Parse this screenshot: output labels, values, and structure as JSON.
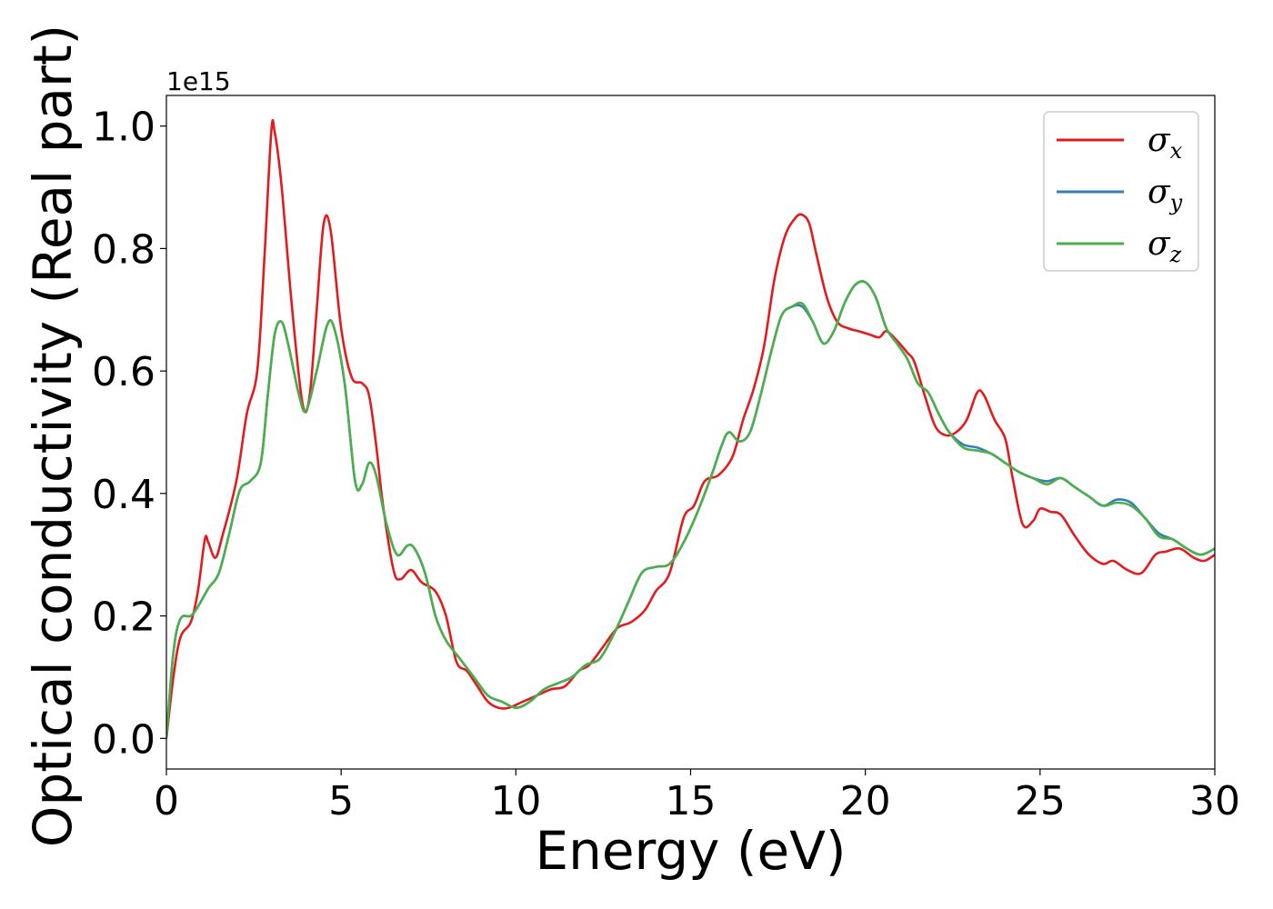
{
  "chart_data": {
    "type": "line",
    "title": "",
    "xlabel": "Energy (eV)",
    "ylabel": "Optical conductivity (Real part)",
    "y_offset_label": "1e15",
    "xlim": [
      0,
      30
    ],
    "ylim": [
      -0.05,
      1.05
    ],
    "x_ticks": [
      0,
      5,
      10,
      15,
      20,
      25,
      30
    ],
    "x_tick_labels": [
      "0",
      "5",
      "10",
      "15",
      "20",
      "25",
      "30"
    ],
    "y_ticks": [
      0.0,
      0.2,
      0.4,
      0.6,
      0.8,
      1.0
    ],
    "y_tick_labels": [
      "0.0",
      "0.2",
      "0.4",
      "0.6",
      "0.8",
      "1.0"
    ],
    "grid": false,
    "legend_position": "top-right",
    "series": [
      {
        "name": "σ",
        "subscript": "x",
        "color": "#e41a1c",
        "points": [
          [
            0,
            0
          ],
          [
            0.2,
            0.1
          ],
          [
            0.4,
            0.165
          ],
          [
            0.7,
            0.19
          ],
          [
            0.9,
            0.24
          ],
          [
            1.1,
            0.325
          ],
          [
            1.2,
            0.32
          ],
          [
            1.4,
            0.295
          ],
          [
            1.6,
            0.33
          ],
          [
            2.0,
            0.42
          ],
          [
            2.3,
            0.53
          ],
          [
            2.6,
            0.6
          ],
          [
            2.8,
            0.78
          ],
          [
            3.0,
            0.99
          ],
          [
            3.1,
            0.99
          ],
          [
            3.3,
            0.9
          ],
          [
            3.6,
            0.7
          ],
          [
            3.9,
            0.545
          ],
          [
            4.1,
            0.56
          ],
          [
            4.3,
            0.7
          ],
          [
            4.5,
            0.84
          ],
          [
            4.7,
            0.83
          ],
          [
            5.0,
            0.67
          ],
          [
            5.3,
            0.59
          ],
          [
            5.6,
            0.58
          ],
          [
            5.8,
            0.56
          ],
          [
            6.0,
            0.48
          ],
          [
            6.2,
            0.38
          ],
          [
            6.5,
            0.275
          ],
          [
            6.7,
            0.26
          ],
          [
            7.0,
            0.275
          ],
          [
            7.3,
            0.255
          ],
          [
            7.7,
            0.24
          ],
          [
            8.0,
            0.2
          ],
          [
            8.3,
            0.125
          ],
          [
            8.6,
            0.11
          ],
          [
            8.9,
            0.085
          ],
          [
            9.2,
            0.06
          ],
          [
            9.5,
            0.05
          ],
          [
            9.8,
            0.05
          ],
          [
            10.2,
            0.06
          ],
          [
            10.6,
            0.07
          ],
          [
            11.0,
            0.08
          ],
          [
            11.4,
            0.085
          ],
          [
            11.8,
            0.11
          ],
          [
            12.1,
            0.12
          ],
          [
            12.5,
            0.15
          ],
          [
            12.9,
            0.18
          ],
          [
            13.3,
            0.19
          ],
          [
            13.7,
            0.21
          ],
          [
            14.0,
            0.24
          ],
          [
            14.4,
            0.27
          ],
          [
            14.8,
            0.36
          ],
          [
            15.1,
            0.38
          ],
          [
            15.4,
            0.42
          ],
          [
            15.8,
            0.43
          ],
          [
            16.2,
            0.46
          ],
          [
            16.5,
            0.52
          ],
          [
            16.8,
            0.57
          ],
          [
            17.1,
            0.64
          ],
          [
            17.4,
            0.75
          ],
          [
            17.7,
            0.82
          ],
          [
            18.0,
            0.85
          ],
          [
            18.2,
            0.855
          ],
          [
            18.4,
            0.84
          ],
          [
            18.6,
            0.79
          ],
          [
            18.9,
            0.72
          ],
          [
            19.2,
            0.68
          ],
          [
            19.5,
            0.67
          ],
          [
            19.8,
            0.665
          ],
          [
            20.1,
            0.66
          ],
          [
            20.4,
            0.655
          ],
          [
            20.6,
            0.665
          ],
          [
            20.9,
            0.65
          ],
          [
            21.2,
            0.63
          ],
          [
            21.4,
            0.615
          ],
          [
            21.7,
            0.56
          ],
          [
            22.0,
            0.51
          ],
          [
            22.3,
            0.495
          ],
          [
            22.6,
            0.5
          ],
          [
            22.9,
            0.52
          ],
          [
            23.2,
            0.565
          ],
          [
            23.4,
            0.56
          ],
          [
            23.7,
            0.52
          ],
          [
            24.0,
            0.49
          ],
          [
            24.2,
            0.43
          ],
          [
            24.5,
            0.35
          ],
          [
            24.8,
            0.355
          ],
          [
            25.0,
            0.375
          ],
          [
            25.3,
            0.37
          ],
          [
            25.6,
            0.365
          ],
          [
            26.0,
            0.33
          ],
          [
            26.4,
            0.3
          ],
          [
            26.8,
            0.285
          ],
          [
            27.1,
            0.29
          ],
          [
            27.5,
            0.275
          ],
          [
            27.9,
            0.27
          ],
          [
            28.3,
            0.3
          ],
          [
            28.6,
            0.305
          ],
          [
            29.0,
            0.31
          ],
          [
            29.4,
            0.295
          ],
          [
            29.7,
            0.29
          ],
          [
            30.0,
            0.3
          ]
        ]
      },
      {
        "name": "σ",
        "subscript": "y",
        "color": "#377eb8",
        "points": [
          [
            0,
            0
          ],
          [
            0.2,
            0.14
          ],
          [
            0.4,
            0.195
          ],
          [
            0.7,
            0.2
          ],
          [
            0.9,
            0.215
          ],
          [
            1.2,
            0.245
          ],
          [
            1.5,
            0.27
          ],
          [
            1.8,
            0.335
          ],
          [
            2.1,
            0.405
          ],
          [
            2.4,
            0.42
          ],
          [
            2.7,
            0.45
          ],
          [
            2.9,
            0.56
          ],
          [
            3.1,
            0.66
          ],
          [
            3.3,
            0.68
          ],
          [
            3.5,
            0.64
          ],
          [
            3.8,
            0.56
          ],
          [
            4.0,
            0.535
          ],
          [
            4.3,
            0.6
          ],
          [
            4.6,
            0.675
          ],
          [
            4.8,
            0.67
          ],
          [
            5.1,
            0.58
          ],
          [
            5.4,
            0.42
          ],
          [
            5.6,
            0.415
          ],
          [
            5.8,
            0.45
          ],
          [
            6.0,
            0.43
          ],
          [
            6.3,
            0.35
          ],
          [
            6.6,
            0.3
          ],
          [
            6.9,
            0.315
          ],
          [
            7.1,
            0.31
          ],
          [
            7.4,
            0.27
          ],
          [
            7.7,
            0.2
          ],
          [
            8.0,
            0.16
          ],
          [
            8.4,
            0.13
          ],
          [
            8.8,
            0.1
          ],
          [
            9.2,
            0.07
          ],
          [
            9.6,
            0.06
          ],
          [
            10.0,
            0.05
          ],
          [
            10.4,
            0.06
          ],
          [
            10.8,
            0.08
          ],
          [
            11.2,
            0.09
          ],
          [
            11.6,
            0.1
          ],
          [
            12.0,
            0.12
          ],
          [
            12.4,
            0.13
          ],
          [
            12.8,
            0.17
          ],
          [
            13.2,
            0.22
          ],
          [
            13.6,
            0.27
          ],
          [
            14.0,
            0.28
          ],
          [
            14.4,
            0.285
          ],
          [
            14.8,
            0.32
          ],
          [
            15.2,
            0.37
          ],
          [
            15.6,
            0.43
          ],
          [
            15.9,
            0.48
          ],
          [
            16.1,
            0.5
          ],
          [
            16.4,
            0.485
          ],
          [
            16.7,
            0.5
          ],
          [
            17.0,
            0.56
          ],
          [
            17.3,
            0.63
          ],
          [
            17.6,
            0.69
          ],
          [
            17.9,
            0.705
          ],
          [
            18.2,
            0.705
          ],
          [
            18.5,
            0.68
          ],
          [
            18.8,
            0.645
          ],
          [
            19.1,
            0.665
          ],
          [
            19.4,
            0.71
          ],
          [
            19.7,
            0.74
          ],
          [
            20.0,
            0.745
          ],
          [
            20.3,
            0.72
          ],
          [
            20.6,
            0.67
          ],
          [
            20.9,
            0.645
          ],
          [
            21.2,
            0.62
          ],
          [
            21.5,
            0.58
          ],
          [
            21.8,
            0.565
          ],
          [
            22.1,
            0.53
          ],
          [
            22.4,
            0.5
          ],
          [
            22.8,
            0.48
          ],
          [
            23.2,
            0.475
          ],
          [
            23.6,
            0.465
          ],
          [
            24.0,
            0.45
          ],
          [
            24.4,
            0.435
          ],
          [
            24.8,
            0.425
          ],
          [
            25.2,
            0.42
          ],
          [
            25.6,
            0.425
          ],
          [
            26.0,
            0.41
          ],
          [
            26.4,
            0.395
          ],
          [
            26.8,
            0.38
          ],
          [
            27.2,
            0.39
          ],
          [
            27.6,
            0.385
          ],
          [
            28.0,
            0.36
          ],
          [
            28.4,
            0.335
          ],
          [
            28.8,
            0.325
          ],
          [
            29.2,
            0.31
          ],
          [
            29.6,
            0.3
          ],
          [
            30.0,
            0.31
          ]
        ]
      },
      {
        "name": "σ",
        "subscript": "z",
        "color": "#4daf4a",
        "points": [
          [
            0,
            0
          ],
          [
            0.2,
            0.14
          ],
          [
            0.4,
            0.195
          ],
          [
            0.7,
            0.2
          ],
          [
            0.9,
            0.215
          ],
          [
            1.2,
            0.245
          ],
          [
            1.5,
            0.27
          ],
          [
            1.8,
            0.335
          ],
          [
            2.1,
            0.405
          ],
          [
            2.4,
            0.42
          ],
          [
            2.7,
            0.45
          ],
          [
            2.9,
            0.56
          ],
          [
            3.1,
            0.66
          ],
          [
            3.3,
            0.68
          ],
          [
            3.5,
            0.64
          ],
          [
            3.8,
            0.56
          ],
          [
            4.0,
            0.535
          ],
          [
            4.3,
            0.6
          ],
          [
            4.6,
            0.675
          ],
          [
            4.8,
            0.67
          ],
          [
            5.1,
            0.58
          ],
          [
            5.4,
            0.42
          ],
          [
            5.6,
            0.415
          ],
          [
            5.8,
            0.45
          ],
          [
            6.0,
            0.43
          ],
          [
            6.3,
            0.35
          ],
          [
            6.6,
            0.3
          ],
          [
            6.9,
            0.315
          ],
          [
            7.1,
            0.31
          ],
          [
            7.4,
            0.27
          ],
          [
            7.7,
            0.2
          ],
          [
            8.0,
            0.16
          ],
          [
            8.4,
            0.13
          ],
          [
            8.8,
            0.1
          ],
          [
            9.2,
            0.07
          ],
          [
            9.6,
            0.06
          ],
          [
            10.0,
            0.05
          ],
          [
            10.4,
            0.06
          ],
          [
            10.8,
            0.08
          ],
          [
            11.2,
            0.09
          ],
          [
            11.6,
            0.1
          ],
          [
            12.0,
            0.12
          ],
          [
            12.4,
            0.13
          ],
          [
            12.8,
            0.17
          ],
          [
            13.2,
            0.22
          ],
          [
            13.6,
            0.27
          ],
          [
            14.0,
            0.28
          ],
          [
            14.4,
            0.285
          ],
          [
            14.8,
            0.32
          ],
          [
            15.2,
            0.37
          ],
          [
            15.6,
            0.43
          ],
          [
            15.9,
            0.48
          ],
          [
            16.1,
            0.5
          ],
          [
            16.4,
            0.485
          ],
          [
            16.7,
            0.5
          ],
          [
            17.0,
            0.56
          ],
          [
            17.3,
            0.63
          ],
          [
            17.6,
            0.69
          ],
          [
            17.9,
            0.705
          ],
          [
            18.2,
            0.71
          ],
          [
            18.5,
            0.68
          ],
          [
            18.8,
            0.645
          ],
          [
            19.1,
            0.665
          ],
          [
            19.4,
            0.71
          ],
          [
            19.7,
            0.74
          ],
          [
            20.0,
            0.745
          ],
          [
            20.3,
            0.72
          ],
          [
            20.6,
            0.67
          ],
          [
            20.9,
            0.645
          ],
          [
            21.2,
            0.62
          ],
          [
            21.5,
            0.58
          ],
          [
            21.8,
            0.565
          ],
          [
            22.1,
            0.53
          ],
          [
            22.4,
            0.5
          ],
          [
            22.8,
            0.475
          ],
          [
            23.2,
            0.47
          ],
          [
            23.6,
            0.465
          ],
          [
            24.0,
            0.45
          ],
          [
            24.4,
            0.435
          ],
          [
            24.8,
            0.425
          ],
          [
            25.2,
            0.415
          ],
          [
            25.6,
            0.425
          ],
          [
            26.0,
            0.41
          ],
          [
            26.4,
            0.395
          ],
          [
            26.8,
            0.38
          ],
          [
            27.2,
            0.385
          ],
          [
            27.6,
            0.38
          ],
          [
            28.0,
            0.36
          ],
          [
            28.4,
            0.33
          ],
          [
            28.8,
            0.325
          ],
          [
            29.2,
            0.31
          ],
          [
            29.6,
            0.3
          ],
          [
            30.0,
            0.31
          ]
        ]
      }
    ]
  }
}
